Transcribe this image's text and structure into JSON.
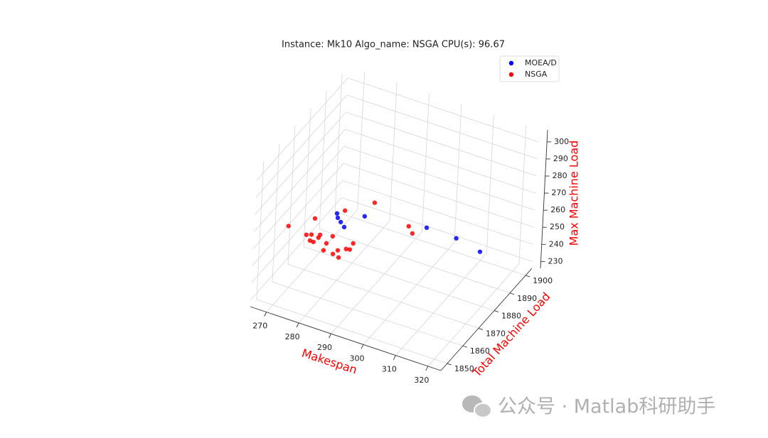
{
  "chart_data": {
    "type": "scatter3d",
    "title": "Instance: Mk10 Algo_name: NSGA CPU(s): 96.67",
    "xlabel": "Makespan",
    "ylabel": "Total Machine Load",
    "zlabel": "Max Machine Load",
    "xlim": [
      265,
      324
    ],
    "ylim": [
      1846,
      1904
    ],
    "zlim": [
      226,
      307
    ],
    "xticks": [
      270,
      280,
      290,
      300,
      310,
      320
    ],
    "yticks": [
      1850,
      1860,
      1870,
      1880,
      1890,
      1900
    ],
    "zticks": [
      230,
      240,
      250,
      260,
      270,
      280,
      290,
      300
    ],
    "grid": true,
    "legend": "upper right",
    "axis_label_color": "#ff0000",
    "series": [
      {
        "name": "MOEA/D",
        "color": "#0000ff",
        "x": [
          274.1,
          275.2,
          276.8,
          278.7,
          281.3,
          298.5,
          307.8,
          316.3
        ],
        "y": [
          1881.2,
          1879.4,
          1878.0,
          1876.3,
          1884.0,
          1888.1,
          1887.8,
          1885.4
        ],
        "z": [
          250,
          250,
          250,
          250,
          250,
          250,
          250,
          250
        ]
      },
      {
        "name": "NSGA",
        "color": "#ff0000",
        "x": [
          265.2,
          269.9,
          275.4,
          280.8,
          271.3,
          272.5,
          274.6,
          277.9,
          273.4,
          274.5,
          274.8,
          277.9,
          278.7,
          281.7,
          282.1,
          283.8,
          283.8,
          284.8,
          284.3,
          293.9,
          296.3
        ],
        "y": [
          1868.6,
          1875.8,
          1883.6,
          1891.4,
          1867.4,
          1868.2,
          1869.4,
          1870.6,
          1865.4,
          1865.3,
          1867.9,
          1866.6,
          1863.1,
          1862.9,
          1865.2,
          1862.2,
          1867.0,
          1867.3,
          1870.5,
          1886.1,
          1883.5
        ],
        "z": [
          250,
          250,
          250,
          250,
          250,
          250,
          250,
          250,
          250,
          250,
          250,
          250,
          250,
          250,
          250,
          250,
          250,
          250,
          250,
          250,
          250
        ]
      }
    ]
  },
  "watermark": "公众号 · Matlab科研助手"
}
